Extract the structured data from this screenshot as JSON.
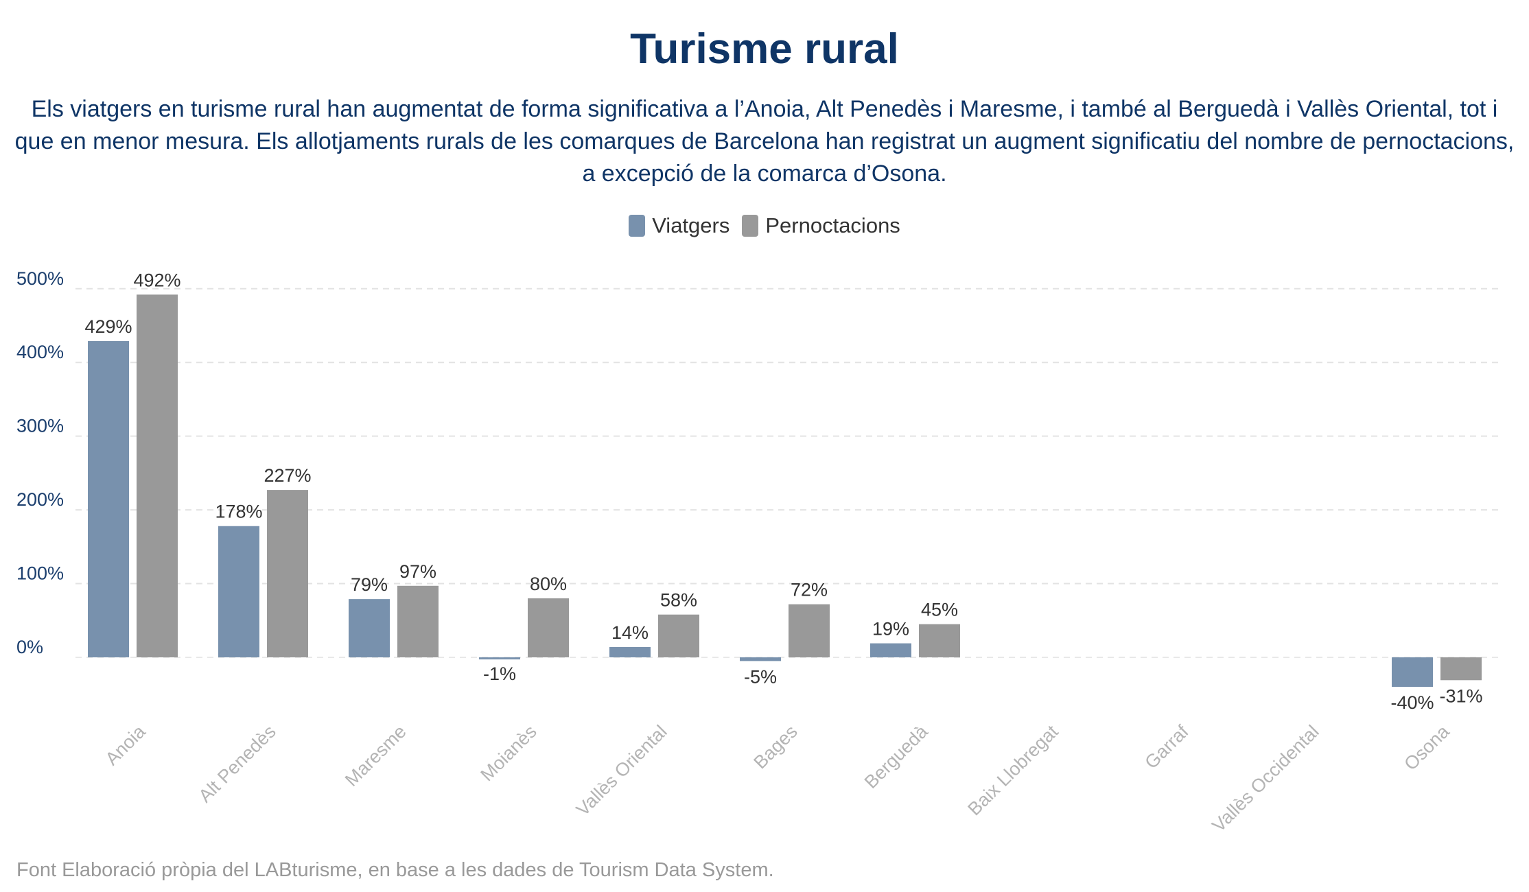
{
  "title": "Turisme rural",
  "subtitle": "Els viatgers en turisme rural han augmentat de forma significativa a l’Anoia, Alt Penedès i Maresme, i també al Berguedà i Vallès Oriental, tot i que en menor mesura. Els allotjaments rurals de les comarques de Barcelona han registrat un augment significatiu del nombre de pernoctacions, a excepció de la comarca d’Osona.",
  "footer": "Font Elaboració pròpia del LABturisme, en base a les dades de Tourism Data System.",
  "chart_data": {
    "type": "bar",
    "categories": [
      "Anoia",
      "Alt Penedès",
      "Maresme",
      "Moianès",
      "Vallès Oriental",
      "Bages",
      "Berguedà",
      "Baix Llobregat",
      "Garraf",
      "Vallès Occidental",
      "Osona"
    ],
    "series": [
      {
        "name": "Viatgers",
        "color": "#7891ad",
        "values": [
          429,
          178,
          79,
          -1,
          14,
          -5,
          19,
          null,
          null,
          null,
          -40
        ],
        "labels": [
          "429%",
          "178%",
          "79%",
          "-1%",
          "14%",
          "-5%",
          "19%",
          "",
          "",
          "",
          "-40%"
        ]
      },
      {
        "name": "Pernoctacions",
        "color": "#999999",
        "values": [
          492,
          227,
          97,
          80,
          58,
          72,
          45,
          null,
          null,
          null,
          -31
        ],
        "labels": [
          "492%",
          "227%",
          "97%",
          "80%",
          "58%",
          "72%",
          "45%",
          "",
          "",
          "",
          "-31%"
        ]
      }
    ],
    "yticks": [
      0,
      100,
      200,
      300,
      400,
      500
    ],
    "ytick_labels": [
      "0%",
      "100%",
      "200%",
      "300%",
      "400%",
      "500%"
    ],
    "ylim": [
      -50,
      500
    ],
    "grid": true,
    "legend_position": "top-center",
    "xlabel": "",
    "ylabel": ""
  }
}
